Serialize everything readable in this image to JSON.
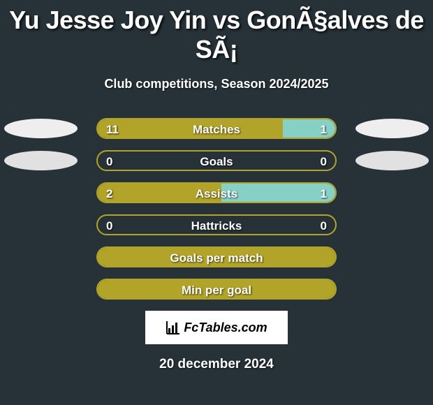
{
  "title": "Yu Jesse Joy Yin vs GonÃ§alves de SÃ¡",
  "subtitle": "Club competitions, Season 2024/2025",
  "date": "20 december 2024",
  "logo_text": "FcTables.com",
  "colors": {
    "background": "#263238",
    "border": "#b2a429",
    "player1_bar": "#b2a429",
    "player2_bar": "#86d0c6",
    "oval_row0": "#eeeeee",
    "oval_row1": "#e1e1e1"
  },
  "stats": [
    {
      "label": "Matches",
      "p1": "11",
      "p2": "1",
      "p1_pct": 78,
      "p2_pct": 22,
      "show_ovals": true,
      "oval_color": "#eeeeee"
    },
    {
      "label": "Goals",
      "p1": "0",
      "p2": "0",
      "p1_pct": 0,
      "p2_pct": 0,
      "show_ovals": true,
      "oval_color": "#e1e1e1"
    },
    {
      "label": "Assists",
      "p1": "2",
      "p2": "1",
      "p1_pct": 52,
      "p2_pct": 48,
      "show_ovals": false
    },
    {
      "label": "Hattricks",
      "p1": "0",
      "p2": "0",
      "p1_pct": 0,
      "p2_pct": 0,
      "show_ovals": false
    },
    {
      "label": "Goals per match",
      "p1": "",
      "p2": "",
      "p1_pct": 100,
      "p2_pct": 0,
      "show_ovals": false
    },
    {
      "label": "Min per goal",
      "p1": "",
      "p2": "",
      "p1_pct": 100,
      "p2_pct": 0,
      "show_ovals": false
    }
  ]
}
